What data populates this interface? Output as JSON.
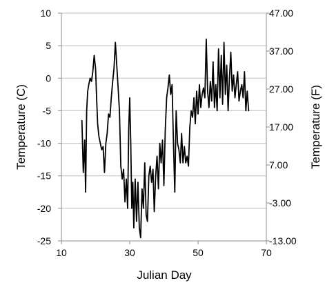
{
  "chart_data": {
    "type": "line",
    "xlabel": "Julian Day",
    "ylabel": "Temperature (C)",
    "y2label": "Temperature (F)",
    "xlim": [
      10,
      70
    ],
    "ylim": [
      -25,
      10
    ],
    "y2lim": [
      -13,
      47
    ],
    "x_ticks": [
      "10",
      "30",
      "50",
      "70"
    ],
    "y_ticks": [
      "10",
      "5",
      "0",
      "-5",
      "-10",
      "-15",
      "-20",
      "-25"
    ],
    "y2_ticks": [
      "47.00",
      "37.00",
      "27.00",
      "17.00",
      "7.00",
      "-3.00",
      "-13.00"
    ],
    "grid": "horizontal",
    "line_color": "#000000",
    "grid_color": "#bfbfbf",
    "series": [
      {
        "x": [
          16.0,
          16.4,
          16.8,
          17.1,
          17.4,
          17.7,
          18.0,
          18.4,
          18.8,
          19.2,
          19.6,
          20.0,
          20.3,
          20.6,
          21.0,
          21.4,
          21.8,
          22.2,
          22.6,
          23.0,
          23.4,
          23.8,
          24.2,
          24.6,
          25.0,
          25.4,
          25.8,
          26.2,
          26.6,
          27.0,
          27.4,
          27.8,
          28.2,
          28.6,
          29.0,
          29.4,
          29.7,
          30.0,
          30.3,
          30.6,
          30.9,
          31.2,
          31.6,
          32.0,
          32.4,
          32.8,
          33.2,
          33.6,
          34.0,
          34.4,
          34.8,
          35.2,
          35.6,
          36.0,
          36.4,
          36.8,
          37.2,
          37.6,
          38.0,
          38.4,
          38.8,
          39.2,
          39.6,
          40.0,
          40.4,
          40.8,
          41.2,
          41.6,
          42.0,
          42.4,
          42.8,
          43.2,
          43.6,
          44.0,
          44.4,
          44.8,
          45.2,
          45.6,
          46.0,
          46.4,
          46.8,
          47.2,
          47.6,
          48.0,
          48.4,
          48.8,
          49.2,
          49.6,
          50.0,
          50.4,
          50.8,
          51.2,
          51.6,
          52.0,
          52.4,
          52.8,
          53.2,
          53.6,
          54.0,
          54.4,
          54.8,
          55.2,
          55.6,
          56.0,
          56.4,
          56.8,
          57.2,
          57.6,
          58.0,
          58.4,
          58.8,
          59.2,
          59.6,
          60.0,
          60.4,
          60.8,
          61.2,
          61.6,
          62.0,
          62.4,
          62.8,
          63.2,
          63.6,
          64.0,
          64.4,
          64.8
        ],
        "y": [
          -6.5,
          -14.5,
          -9.5,
          -17.5,
          -5.0,
          -2.0,
          -1.0,
          0.0,
          -0.5,
          1.0,
          3.5,
          1.5,
          -3.0,
          -7.0,
          -9.0,
          -10.0,
          -11.0,
          -10.5,
          -14.5,
          -10.0,
          -8.5,
          -5.5,
          -6.0,
          -3.0,
          -0.5,
          1.5,
          5.5,
          2.0,
          -1.5,
          -5.0,
          -13.5,
          -15.5,
          -14.0,
          -19.0,
          -15.5,
          -20.0,
          -8.0,
          -3.0,
          -10.0,
          -20.0,
          -16.0,
          -23.0,
          -15.5,
          -22.0,
          -16.0,
          -23.0,
          -24.5,
          -17.0,
          -20.0,
          -13.0,
          -21.0,
          -22.0,
          -15.0,
          -13.5,
          -16.0,
          -14.0,
          -20.5,
          -15.0,
          -12.0,
          -17.0,
          -10.0,
          -13.0,
          -9.5,
          -16.5,
          -8.0,
          -3.0,
          -1.5,
          0.5,
          -2.5,
          -1.0,
          -10.0,
          -17.5,
          -5.0,
          -10.0,
          -11.0,
          -13.0,
          -8.5,
          -13.0,
          -10.5,
          -13.0,
          -12.0,
          -13.5,
          -7.5,
          -5.0,
          -6.0,
          -3.0,
          -7.0,
          -2.0,
          -5.5,
          -1.0,
          -4.5,
          -2.5,
          -1.5,
          -3.0,
          6.0,
          -2.0,
          -4.5,
          -0.5,
          -3.5,
          2.5,
          -4.5,
          -1.0,
          -5.0,
          4.5,
          -3.0,
          3.5,
          -4.0,
          5.5,
          -2.5,
          2.0,
          -5.0,
          0.0,
          4.0,
          -2.0,
          0.5,
          -3.0,
          -1.0,
          1.0,
          -3.5,
          -2.0,
          -1.0,
          -3.0,
          1.0,
          -5.0,
          -2.0,
          -5.0
        ]
      }
    ]
  }
}
